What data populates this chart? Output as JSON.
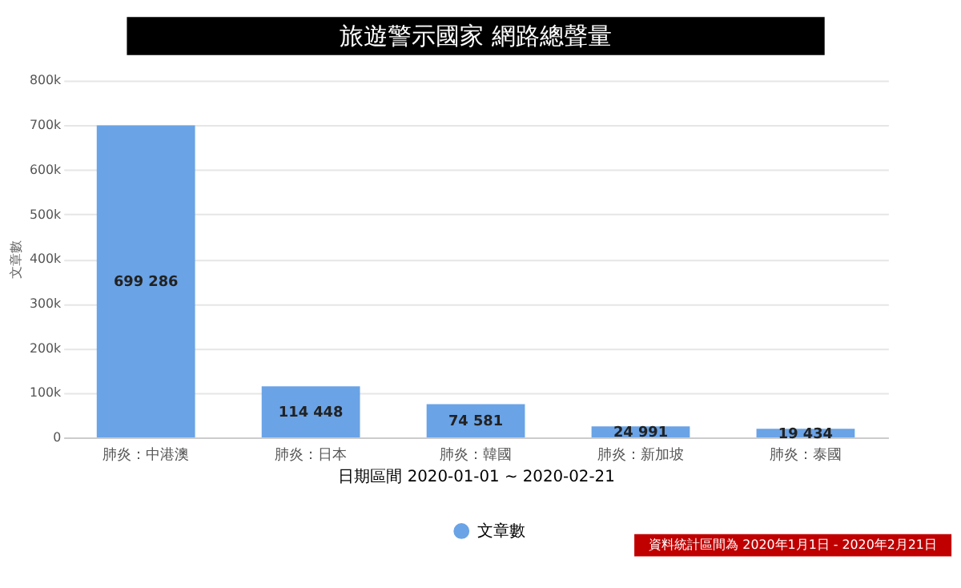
{
  "chart_data": {
    "type": "bar",
    "title": "旅遊警示國家 網路總聲量",
    "categories": [
      "肺炎：中港澳",
      "肺炎：日本",
      "肺炎：韓國",
      "肺炎：新加坡",
      "肺炎：泰國"
    ],
    "series": [
      {
        "name": "文章數",
        "color": "#6aa3e6",
        "values": [
          699286,
          114448,
          74581,
          24991,
          19434
        ]
      }
    ],
    "value_labels": [
      "699 286",
      "114 448",
      "74 581",
      "24 991",
      "19 434"
    ],
    "xlabel": "日期區間 2020-01-01 ~ 2020-02-21",
    "ylabel": "文章數",
    "ylim": [
      0,
      800000
    ],
    "yticks": [
      {
        "value": 0,
        "label": "0"
      },
      {
        "value": 100000,
        "label": "100k"
      },
      {
        "value": 200000,
        "label": "200k"
      },
      {
        "value": 300000,
        "label": "300k"
      },
      {
        "value": 400000,
        "label": "400k"
      },
      {
        "value": 500000,
        "label": "500k"
      },
      {
        "value": 600000,
        "label": "600k"
      },
      {
        "value": 700000,
        "label": "700k"
      },
      {
        "value": 800000,
        "label": "800k"
      }
    ],
    "grid": "y",
    "legend": "bottom",
    "annotations": [
      "資料統計區間為 2020年1月1日 - 2020年2月21日"
    ]
  }
}
